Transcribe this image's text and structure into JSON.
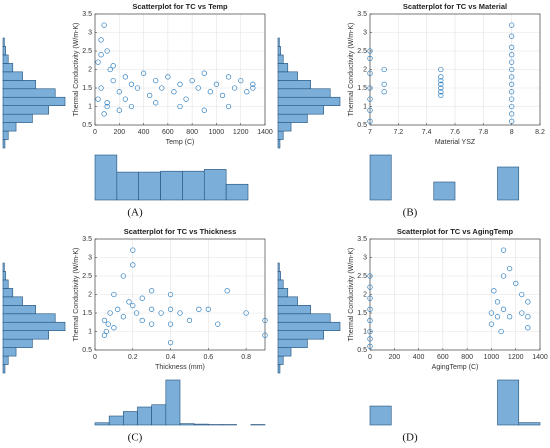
{
  "chart_data": [
    {
      "type": "scatter",
      "title": "Scatterplot for TC vs Temp",
      "xlabel": "Temp (C)",
      "ylabel": "Thermal Conductivity (W/m-K)",
      "panel_label": "(A)",
      "color": "#2e7fc1",
      "grid": true,
      "xlim": [
        0,
        1400
      ],
      "xticks": [
        0,
        200,
        400,
        600,
        800,
        1000,
        1200,
        1400
      ],
      "ylim": [
        0.5,
        3.5
      ],
      "yticks": [
        0.5,
        1,
        1.5,
        2,
        2.5,
        3,
        3.5
      ],
      "x": [
        25,
        25,
        50,
        50,
        75,
        100,
        100,
        125,
        150,
        200,
        250,
        300,
        350,
        400,
        450,
        500,
        550,
        600,
        650,
        700,
        750,
        800,
        850,
        900,
        950,
        1000,
        1050,
        1100,
        1150,
        1200,
        1250,
        1300,
        75,
        100,
        200,
        300,
        500,
        700,
        900,
        1100,
        1300,
        50,
        150,
        250
      ],
      "y": [
        1.2,
        2.2,
        1.5,
        2.8,
        3.2,
        2.5,
        1.0,
        2.0,
        1.7,
        1.4,
        1.8,
        1.6,
        1.5,
        1.9,
        1.3,
        1.7,
        1.5,
        1.8,
        1.4,
        1.6,
        1.2,
        1.7,
        1.5,
        1.9,
        1.4,
        1.6,
        1.3,
        1.8,
        1.5,
        1.7,
        1.4,
        1.6,
        0.8,
        1.1,
        0.9,
        1.0,
        1.1,
        1.0,
        0.9,
        1.0,
        1.5,
        2.4,
        2.1,
        1.2
      ],
      "x_histogram": {
        "bins": [
          0,
          180,
          360,
          540,
          720,
          900,
          1080,
          1260
        ],
        "counts": [
          100,
          62,
          62,
          64,
          64,
          68,
          35
        ]
      },
      "y_histogram": {
        "bins": [
          0.6,
          0.8,
          1.0,
          1.2,
          1.4,
          1.6,
          1.8,
          2.0,
          2.2,
          2.4,
          2.6,
          2.8,
          3.0,
          3.2
        ],
        "counts": [
          3,
          8,
          20,
          45,
          70,
          95,
          80,
          50,
          30,
          15,
          8,
          4,
          2
        ]
      }
    },
    {
      "type": "scatter",
      "title": "Scatterplot for TC vs Material",
      "xlabel": "Material YSZ",
      "ylabel": "Thermal Conductivity (W/m-K)",
      "panel_label": "(B)",
      "color": "#2e7fc1",
      "grid": true,
      "xlim": [
        7,
        8.2
      ],
      "xticks": [
        7,
        7.2,
        7.4,
        7.6,
        7.8,
        8,
        8.2
      ],
      "ylim": [
        0.5,
        3.5
      ],
      "yticks": [
        0.5,
        1,
        1.5,
        2,
        2.5,
        3,
        3.5
      ],
      "x": [
        7,
        7,
        7,
        7,
        7,
        7,
        7,
        7.1,
        7.1,
        7.1,
        7.5,
        7.5,
        7.5,
        7.5,
        7.5,
        7.5,
        7.5,
        8,
        8,
        8,
        8,
        8,
        8,
        8,
        8,
        8,
        8,
        8,
        8,
        8
      ],
      "y": [
        2.5,
        2.3,
        1.9,
        1.5,
        1.2,
        0.9,
        0.6,
        2.0,
        1.6,
        1.4,
        2.0,
        1.8,
        1.7,
        1.6,
        1.5,
        1.4,
        1.3,
        3.2,
        2.9,
        2.6,
        2.4,
        2.2,
        2.0,
        1.8,
        1.6,
        1.4,
        1.2,
        1.0,
        0.8,
        0.6
      ],
      "x_histogram": {
        "bins": [
          7,
          7.15,
          7.3,
          7.45,
          7.6,
          7.75,
          7.9,
          8.05
        ],
        "counts": [
          75,
          0,
          0,
          30,
          0,
          0,
          55
        ]
      },
      "y_histogram": {
        "bins": [
          0.6,
          0.8,
          1.0,
          1.2,
          1.4,
          1.6,
          1.8,
          2.0,
          2.2,
          2.4,
          2.6,
          2.8,
          3.0,
          3.2
        ],
        "counts": [
          3,
          8,
          20,
          45,
          70,
          95,
          80,
          50,
          30,
          15,
          8,
          4,
          2
        ]
      }
    },
    {
      "type": "scatter",
      "title": "Scatterplot for TC vs Thickness",
      "xlabel": "Thickness (mm)",
      "ylabel": "Thermal Conductivity (W/m-K)",
      "panel_label": "(C)",
      "color": "#2e7fc1",
      "grid": true,
      "xlim": [
        0,
        0.9
      ],
      "xticks": [
        0,
        0.2,
        0.4,
        0.6,
        0.8
      ],
      "ylim": [
        0.5,
        3.5
      ],
      "yticks": [
        0.5,
        1,
        1.5,
        2,
        2.5,
        3,
        3.5
      ],
      "x": [
        0.05,
        0.05,
        0.06,
        0.07,
        0.08,
        0.1,
        0.1,
        0.12,
        0.15,
        0.15,
        0.18,
        0.2,
        0.2,
        0.2,
        0.22,
        0.25,
        0.25,
        0.3,
        0.3,
        0.3,
        0.35,
        0.4,
        0.4,
        0.4,
        0.4,
        0.45,
        0.5,
        0.55,
        0.6,
        0.65,
        0.7,
        0.8,
        0.9,
        0.9
      ],
      "y": [
        1.3,
        0.9,
        1.0,
        1.2,
        1.5,
        1.1,
        2.0,
        1.6,
        2.5,
        1.4,
        1.8,
        3.2,
        2.8,
        1.7,
        1.5,
        1.9,
        1.3,
        2.1,
        1.6,
        1.2,
        1.5,
        2.0,
        1.6,
        1.2,
        0.7,
        1.5,
        1.3,
        1.6,
        1.6,
        1.2,
        2.1,
        1.5,
        1.3,
        0.9
      ],
      "x_histogram": {
        "bins": [
          0,
          0.075,
          0.15,
          0.225,
          0.3,
          0.375,
          0.45,
          0.525,
          0.6,
          0.675,
          0.75,
          0.825,
          0.9
        ],
        "counts": [
          5,
          20,
          30,
          40,
          45,
          100,
          3,
          2,
          1,
          1,
          0,
          1
        ]
      },
      "y_histogram": {
        "bins": [
          0.6,
          0.8,
          1.0,
          1.2,
          1.4,
          1.6,
          1.8,
          2.0,
          2.2,
          2.4,
          2.6,
          2.8,
          3.0,
          3.2
        ],
        "counts": [
          3,
          8,
          20,
          45,
          70,
          95,
          80,
          50,
          30,
          15,
          8,
          4,
          2
        ]
      }
    },
    {
      "type": "scatter",
      "title": "Scatterplot for TC vs AgingTemp",
      "xlabel": "AgingTemp (C)",
      "ylabel": "Thermal Conductivity (W/m-K)",
      "panel_label": "(D)",
      "color": "#2e7fc1",
      "grid": true,
      "xlim": [
        0,
        1400
      ],
      "xticks": [
        0,
        200,
        400,
        600,
        800,
        1000,
        1200,
        1400
      ],
      "ylim": [
        0.5,
        3.5
      ],
      "yticks": [
        0.5,
        1,
        1.5,
        2,
        2.5,
        3,
        3.5
      ],
      "x": [
        0,
        0,
        0,
        0,
        0,
        0,
        0,
        0,
        1000,
        1000,
        1020,
        1050,
        1050,
        1080,
        1100,
        1100,
        1100,
        1150,
        1150,
        1200,
        1250,
        1250,
        1300,
        1300,
        1300
      ],
      "y": [
        2.5,
        2.2,
        1.9,
        1.6,
        1.3,
        1.0,
        0.8,
        0.6,
        1.5,
        1.2,
        2.1,
        1.8,
        1.4,
        1.0,
        3.2,
        2.5,
        1.6,
        2.7,
        1.4,
        2.3,
        2.0,
        1.5,
        1.8,
        1.4,
        1.1
      ],
      "x_histogram": {
        "bins": [
          0,
          175,
          350,
          525,
          700,
          875,
          1050,
          1225,
          1400
        ],
        "counts": [
          40,
          0,
          0,
          0,
          0,
          0,
          95,
          5
        ]
      },
      "y_histogram": {
        "bins": [
          0.6,
          0.8,
          1.0,
          1.2,
          1.4,
          1.6,
          1.8,
          2.0,
          2.2,
          2.4,
          2.6,
          2.8,
          3.0,
          3.2
        ],
        "counts": [
          3,
          8,
          20,
          45,
          70,
          95,
          80,
          50,
          30,
          15,
          8,
          4,
          2
        ]
      }
    }
  ]
}
